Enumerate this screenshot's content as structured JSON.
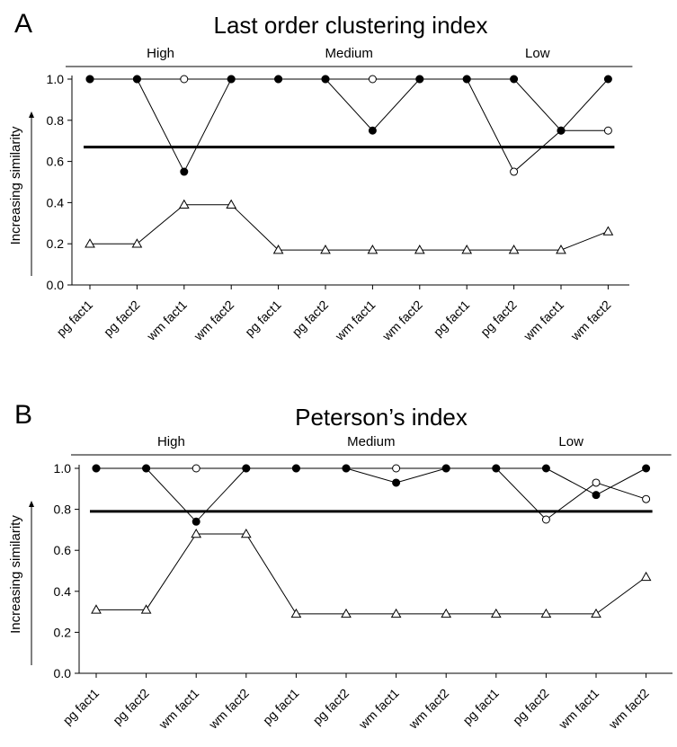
{
  "chart_data": [
    {
      "type": "line",
      "panel_letter": "A",
      "title": "Last order clustering index",
      "ylabel": "Increasing similarity",
      "ylim": [
        0,
        1
      ],
      "yticks": [
        "0.0",
        "0.2",
        "0.4",
        "0.6",
        "0.8",
        "1.0"
      ],
      "categories": [
        "pg fact1",
        "pg fact2",
        "wm fact1",
        "wm fact2",
        "pg fact1",
        "pg fact2",
        "wm fact1",
        "wm fact2",
        "pg fact1",
        "pg fact2",
        "wm fact1",
        "wm fact2"
      ],
      "groups": [
        {
          "label": "High",
          "from": 0,
          "to": 3
        },
        {
          "label": "Medium",
          "from": 4,
          "to": 7
        },
        {
          "label": "Low",
          "from": 8,
          "to": 11
        }
      ],
      "threshold": 0.67,
      "series": [
        {
          "marker": "filled-circle",
          "values": [
            1.0,
            1.0,
            0.55,
            1.0,
            1.0,
            1.0,
            0.75,
            1.0,
            1.0,
            1.0,
            0.75,
            1.0
          ]
        },
        {
          "marker": "open-circle",
          "values": [
            1.0,
            1.0,
            1.0,
            1.0,
            1.0,
            1.0,
            1.0,
            1.0,
            1.0,
            0.55,
            0.75,
            0.75
          ]
        },
        {
          "marker": "open-triangle",
          "values": [
            0.2,
            0.2,
            0.39,
            0.39,
            0.17,
            0.17,
            0.17,
            0.17,
            0.17,
            0.17,
            0.17,
            0.26
          ]
        }
      ]
    },
    {
      "type": "line",
      "panel_letter": "B",
      "title": "Peterson’s index",
      "ylabel": "Increasing similarity",
      "ylim": [
        0,
        1
      ],
      "yticks": [
        "0.0",
        "0.2",
        "0.4",
        "0.6",
        "0.8",
        "1.0"
      ],
      "categories": [
        "pg fact1",
        "pg fact2",
        "wm fact1",
        "wm fact2",
        "pg fact1",
        "pg fact2",
        "wm fact1",
        "wm fact2",
        "pg fact1",
        "pg fact2",
        "wm fact1",
        "wm fact2"
      ],
      "groups": [
        {
          "label": "High",
          "from": 0,
          "to": 3
        },
        {
          "label": "Medium",
          "from": 4,
          "to": 7
        },
        {
          "label": "Low",
          "from": 8,
          "to": 11
        }
      ],
      "threshold": 0.79,
      "series": [
        {
          "marker": "filled-circle",
          "values": [
            1.0,
            1.0,
            0.74,
            1.0,
            1.0,
            1.0,
            0.93,
            1.0,
            1.0,
            1.0,
            0.87,
            1.0
          ]
        },
        {
          "marker": "open-circle",
          "values": [
            1.0,
            1.0,
            1.0,
            1.0,
            1.0,
            1.0,
            1.0,
            1.0,
            1.0,
            0.75,
            0.93,
            0.85
          ]
        },
        {
          "marker": "open-triangle",
          "values": [
            0.31,
            0.31,
            0.68,
            0.68,
            0.29,
            0.29,
            0.29,
            0.29,
            0.29,
            0.29,
            0.29,
            0.47
          ]
        }
      ]
    }
  ]
}
